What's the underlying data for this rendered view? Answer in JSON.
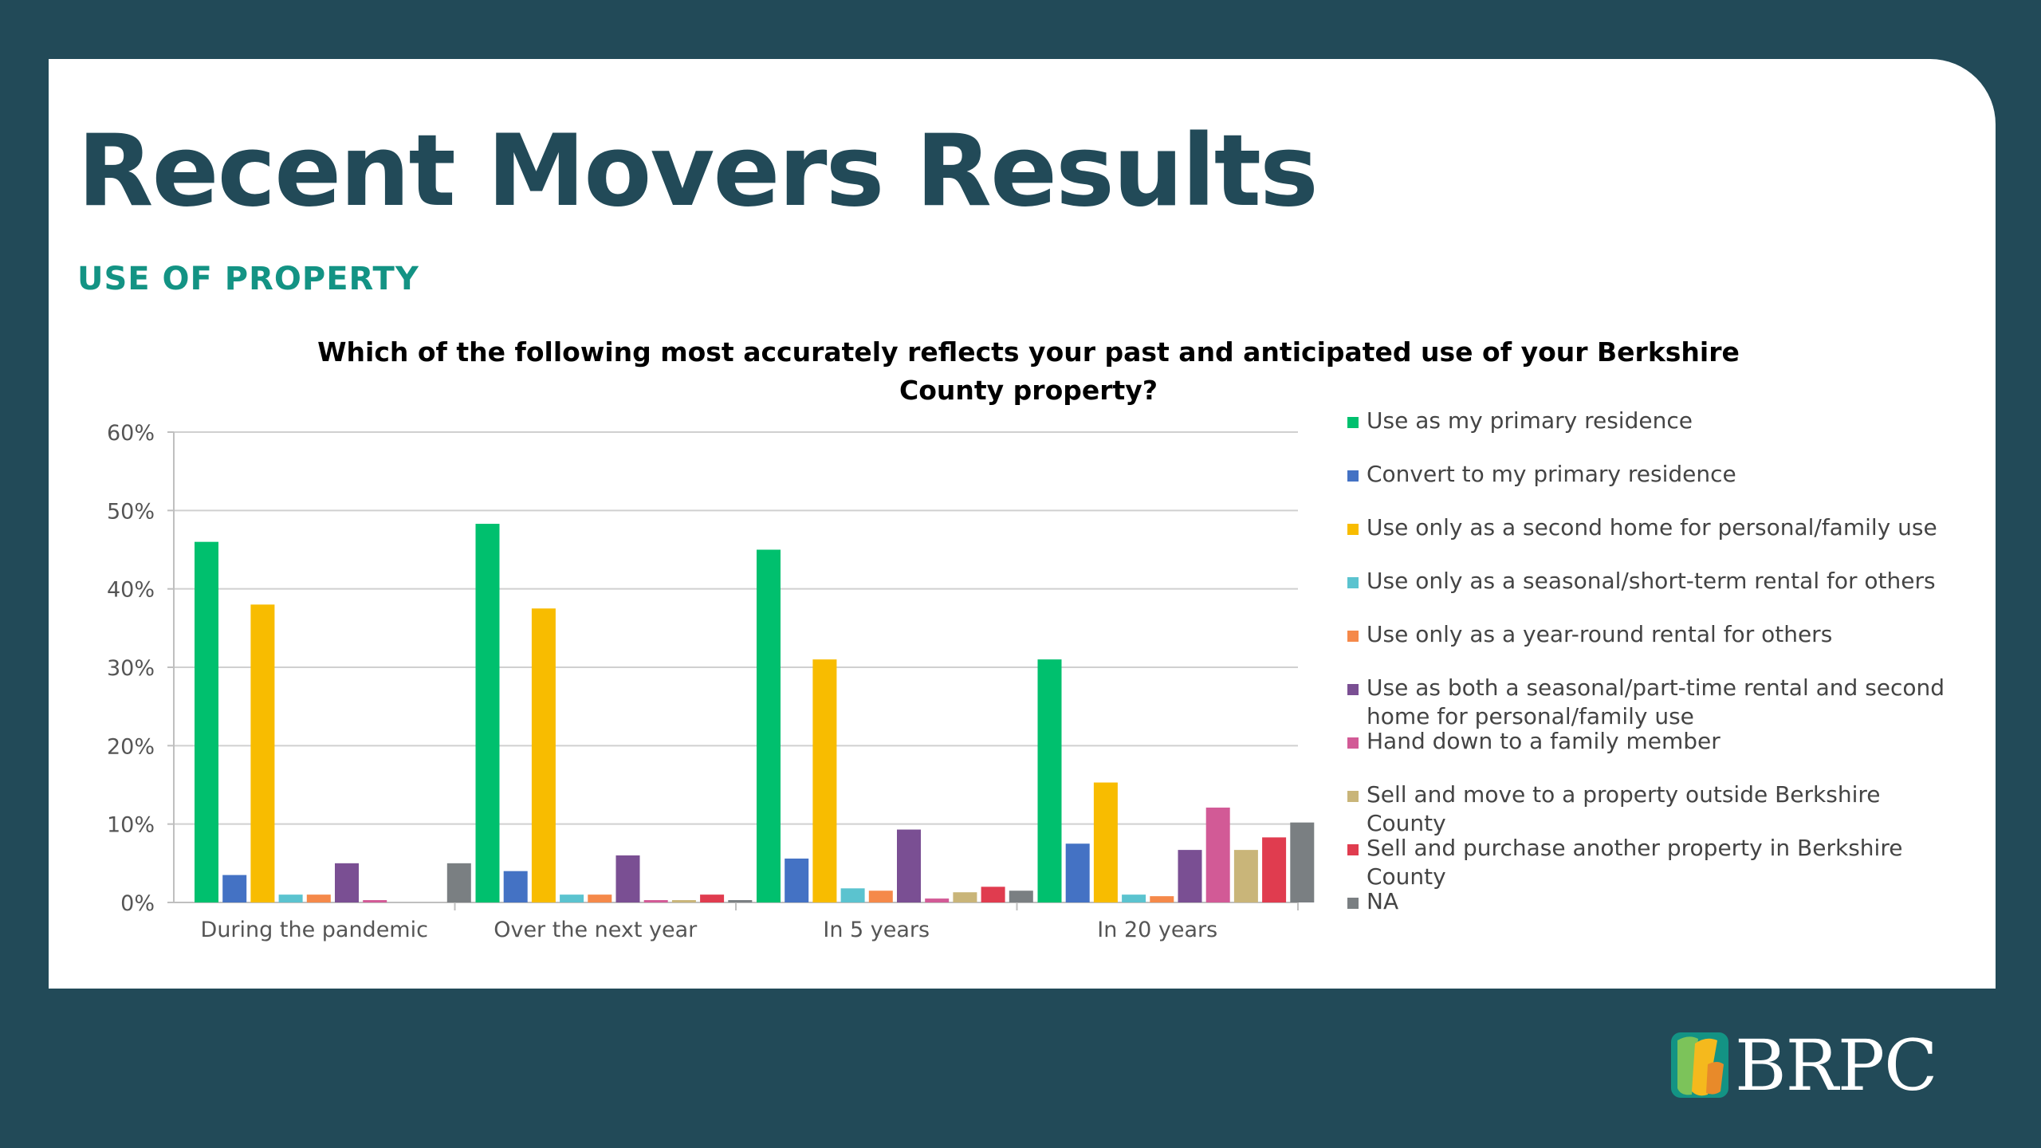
{
  "slide": {
    "title": "Recent Movers Results",
    "subtitle": "USE OF PROPERTY"
  },
  "logo": {
    "text": "BRPC",
    "mark_colors": [
      "#7cc35a",
      "#139384",
      "#f5b91d",
      "#e88a2a"
    ]
  },
  "chart_data": {
    "type": "bar",
    "title": "Which of the following most accurately reflects your past and anticipated use of your Berkshire County property?",
    "categories": [
      "During the pandemic",
      "Over the next year",
      "In 5 years",
      "In 20 years"
    ],
    "ylim": [
      0,
      60
    ],
    "yticks": [
      "0%",
      "10%",
      "20%",
      "30%",
      "40%",
      "50%",
      "60%"
    ],
    "grid": true,
    "legend_position": "right",
    "series": [
      {
        "name": "Use as my primary residence",
        "color": "#00c06e",
        "values": [
          46,
          48.3,
          45,
          31
        ]
      },
      {
        "name": "Convert to my primary residence",
        "color": "#4472c4",
        "values": [
          3.5,
          4,
          5.6,
          7.5
        ]
      },
      {
        "name": "Use only as a second home for personal/family use",
        "color": "#f8bc00",
        "values": [
          38,
          37.5,
          31,
          15.3
        ]
      },
      {
        "name": "Use only as a seasonal/short-term rental for others",
        "color": "#5bc3cf",
        "values": [
          1,
          1,
          1.8,
          1
        ]
      },
      {
        "name": "Use only as a year-round rental for others",
        "color": "#f5894a",
        "values": [
          1,
          1,
          1.5,
          0.8
        ]
      },
      {
        "name": "Use as both a seasonal/part-time rental and second home for personal/family use",
        "color": "#7a4f93",
        "values": [
          5,
          6,
          9.3,
          6.7
        ]
      },
      {
        "name": "Hand down to a family member",
        "color": "#d25a96",
        "values": [
          0.3,
          0.3,
          0.5,
          12.1
        ]
      },
      {
        "name": "Sell and move to a property outside Berkshire County",
        "color": "#c9b579",
        "values": [
          0,
          0.3,
          1.3,
          6.7
        ]
      },
      {
        "name": "Sell and purchase another property in Berkshire County",
        "color": "#e03c4f",
        "values": [
          0,
          1,
          2,
          8.3
        ]
      },
      {
        "name": "NA",
        "color": "#7a7f82",
        "values": [
          5,
          0.3,
          1.5,
          10.2
        ]
      }
    ]
  }
}
